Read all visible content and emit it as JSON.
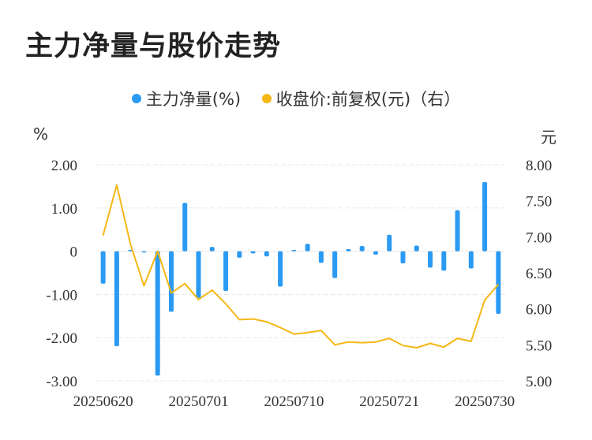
{
  "title": "主力净量与股价走势",
  "legend": {
    "net_label": "主力净量(%)",
    "price_label": "收盘价:前复权(元)（右）"
  },
  "units": {
    "left": "%",
    "right": "元"
  },
  "colors": {
    "bar": "#2b9af3",
    "line": "#f5b715",
    "grid": "#e8e8e8"
  },
  "chart_data": {
    "type": "bar+line",
    "title": "主力净量与股价走势",
    "x": [
      "20250620",
      "20250623",
      "20250624",
      "20250625",
      "20250626",
      "20250627",
      "20250630",
      "20250701",
      "20250702",
      "20250703",
      "20250704",
      "20250707",
      "20250708",
      "20250709",
      "20250710",
      "20250711",
      "20250714",
      "20250715",
      "20250716",
      "20250717",
      "20250718",
      "20250721",
      "20250722",
      "20250723",
      "20250724",
      "20250725",
      "20250728",
      "20250729",
      "20250730",
      "20250731"
    ],
    "x_tick_labels": [
      "20250620",
      "20250701",
      "20250710",
      "20250721",
      "20250730"
    ],
    "x_tick_index": [
      0,
      7,
      14,
      21,
      28
    ],
    "series": [
      {
        "name": "主力净量(%)",
        "type": "bar",
        "axis": "left",
        "values": [
          -0.75,
          -2.2,
          0.03,
          0.0,
          -2.88,
          -1.4,
          1.12,
          -1.08,
          0.1,
          -0.92,
          -0.15,
          -0.05,
          -0.12,
          -0.82,
          0.03,
          0.17,
          -0.27,
          -0.62,
          0.05,
          0.12,
          -0.08,
          0.38,
          -0.28,
          0.13,
          -0.38,
          -0.45,
          0.95,
          -0.4,
          1.6,
          -1.45
        ]
      },
      {
        "name": "收盘价:前复权(元)（右）",
        "type": "line",
        "axis": "right",
        "values": [
          7.02,
          7.72,
          6.9,
          6.32,
          6.8,
          6.22,
          6.35,
          6.13,
          6.26,
          6.07,
          5.85,
          5.86,
          5.82,
          5.74,
          5.65,
          5.67,
          5.7,
          5.5,
          5.54,
          5.53,
          5.54,
          5.59,
          5.49,
          5.46,
          5.52,
          5.47,
          5.59,
          5.55,
          6.12,
          6.34
        ]
      }
    ],
    "y_left": {
      "label": "%",
      "ylim": [
        -3,
        2
      ],
      "ticks": [
        "2.00",
        "1.00",
        "0",
        "-1.00",
        "-2.00",
        "-3.00"
      ]
    },
    "y_right": {
      "label": "元",
      "ylim": [
        5,
        8
      ],
      "ticks": [
        "8.00",
        "7.50",
        "7.00",
        "6.50",
        "6.00",
        "5.50",
        "5.00"
      ]
    },
    "grid": true,
    "legend_position": "top-center"
  }
}
